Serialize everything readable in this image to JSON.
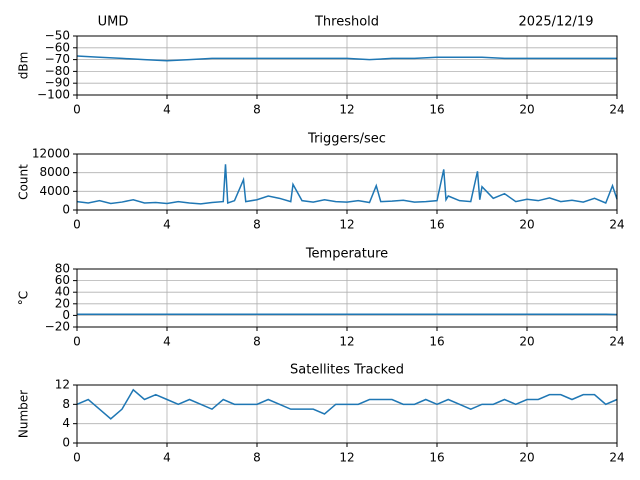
{
  "chart_data": [
    {
      "type": "line",
      "title": "Threshold",
      "annotations": [
        "UMD",
        "2025/12/19"
      ],
      "ylabel": "dBm",
      "color": "#1f77b4",
      "grid": true,
      "x": [
        0,
        1,
        2,
        3,
        4,
        5,
        6,
        7,
        8,
        9,
        10,
        11,
        12,
        13,
        14,
        15,
        16,
        17,
        18,
        19,
        20,
        21,
        22,
        23,
        24
      ],
      "values": [
        -67,
        -68,
        -69,
        -70,
        -71,
        -70,
        -69,
        -69,
        -69,
        -69,
        -69,
        -69,
        -69,
        -70,
        -69,
        -69,
        -68,
        -68,
        -68,
        -69,
        -69,
        -69,
        -69,
        -69,
        -69
      ],
      "xlim": [
        0,
        24
      ],
      "xticks": [
        0,
        4,
        8,
        12,
        16,
        20,
        24
      ],
      "ylim": [
        -100,
        -50
      ],
      "yticks": [
        {
          "value": -100,
          "label": "−100"
        },
        {
          "value": -90,
          "label": "−90"
        },
        {
          "value": -80,
          "label": "−80"
        },
        {
          "value": -70,
          "label": "−70"
        },
        {
          "value": -60,
          "label": "−60"
        },
        {
          "value": -50,
          "label": "−50"
        }
      ]
    },
    {
      "type": "line",
      "title": "Triggers/sec",
      "ylabel": "Count",
      "color": "#1f77b4",
      "grid": true,
      "x": [
        0,
        0.5,
        1,
        1.5,
        2,
        2.5,
        3,
        3.5,
        4,
        4.5,
        5,
        5.5,
        6,
        6.5,
        6.6,
        6.7,
        7,
        7.4,
        7.5,
        8,
        8.5,
        9,
        9.5,
        9.6,
        10,
        10.5,
        11,
        11.5,
        12,
        12.5,
        13,
        13.3,
        13.5,
        14,
        14.5,
        15,
        15.5,
        16,
        16.3,
        16.4,
        16.5,
        17,
        17.5,
        17.8,
        17.9,
        18,
        18.5,
        19,
        19.5,
        20,
        20.5,
        21,
        21.5,
        22,
        22.5,
        23,
        23.5,
        23.8,
        24
      ],
      "values": [
        1800,
        1500,
        2000,
        1400,
        1700,
        2200,
        1500,
        1600,
        1400,
        1800,
        1500,
        1300,
        1600,
        1800,
        9800,
        1500,
        2000,
        6500,
        1800,
        2200,
        3000,
        2500,
        1800,
        5500,
        2000,
        1700,
        2200,
        1800,
        1700,
        2000,
        1600,
        5200,
        1800,
        1900,
        2100,
        1700,
        1800,
        2000,
        8700,
        2200,
        3000,
        2000,
        1800,
        8300,
        2200,
        5000,
        2500,
        3500,
        1800,
        2300,
        2000,
        2600,
        1800,
        2100,
        1700,
        2500,
        1500,
        5200,
        2300
      ],
      "xlim": [
        0,
        24
      ],
      "xticks": [
        0,
        4,
        8,
        12,
        16,
        20,
        24
      ],
      "ylim": [
        0,
        12000
      ],
      "yticks": [
        0,
        4000,
        8000,
        12000
      ]
    },
    {
      "type": "line",
      "title": "Temperature",
      "ylabel": "°C",
      "color": "#1f77b4",
      "grid": true,
      "x": [
        0,
        12,
        23.5,
        24
      ],
      "values": [
        2,
        2,
        2,
        1.5
      ],
      "xlim": [
        0,
        24
      ],
      "xticks": [
        0,
        4,
        8,
        12,
        16,
        20,
        24
      ],
      "ylim": [
        -20,
        80
      ],
      "yticks": [
        {
          "value": -20,
          "label": "−20"
        },
        0,
        20,
        40,
        60,
        80
      ]
    },
    {
      "type": "line",
      "title": "Satellites Tracked",
      "ylabel": "Number",
      "color": "#1f77b4",
      "grid": true,
      "x": [
        0,
        0.5,
        1,
        1.5,
        2,
        2.5,
        3,
        3.5,
        4,
        4.5,
        5,
        5.5,
        6,
        6.5,
        7,
        7.5,
        8,
        8.5,
        9,
        9.5,
        10,
        10.5,
        11,
        11.5,
        12,
        12.5,
        13,
        13.5,
        14,
        14.5,
        15,
        15.5,
        16,
        16.5,
        17,
        17.5,
        18,
        18.5,
        19,
        19.5,
        20,
        20.5,
        21,
        21.5,
        22,
        22.5,
        23,
        23.5,
        24
      ],
      "values": [
        8,
        9,
        7,
        5,
        7,
        11,
        9,
        10,
        9,
        8,
        9,
        8,
        7,
        9,
        8,
        8,
        8,
        9,
        8,
        7,
        7,
        7,
        6,
        8,
        8,
        8,
        9,
        9,
        9,
        8,
        8,
        9,
        8,
        9,
        8,
        7,
        8,
        8,
        9,
        8,
        9,
        9,
        10,
        10,
        9,
        10,
        10,
        8,
        9
      ],
      "xlim": [
        0,
        24
      ],
      "xticks": [
        0,
        4,
        8,
        12,
        16,
        20,
        24
      ],
      "ylim": [
        0,
        12
      ],
      "yticks": [
        0,
        4,
        8,
        12
      ]
    }
  ]
}
